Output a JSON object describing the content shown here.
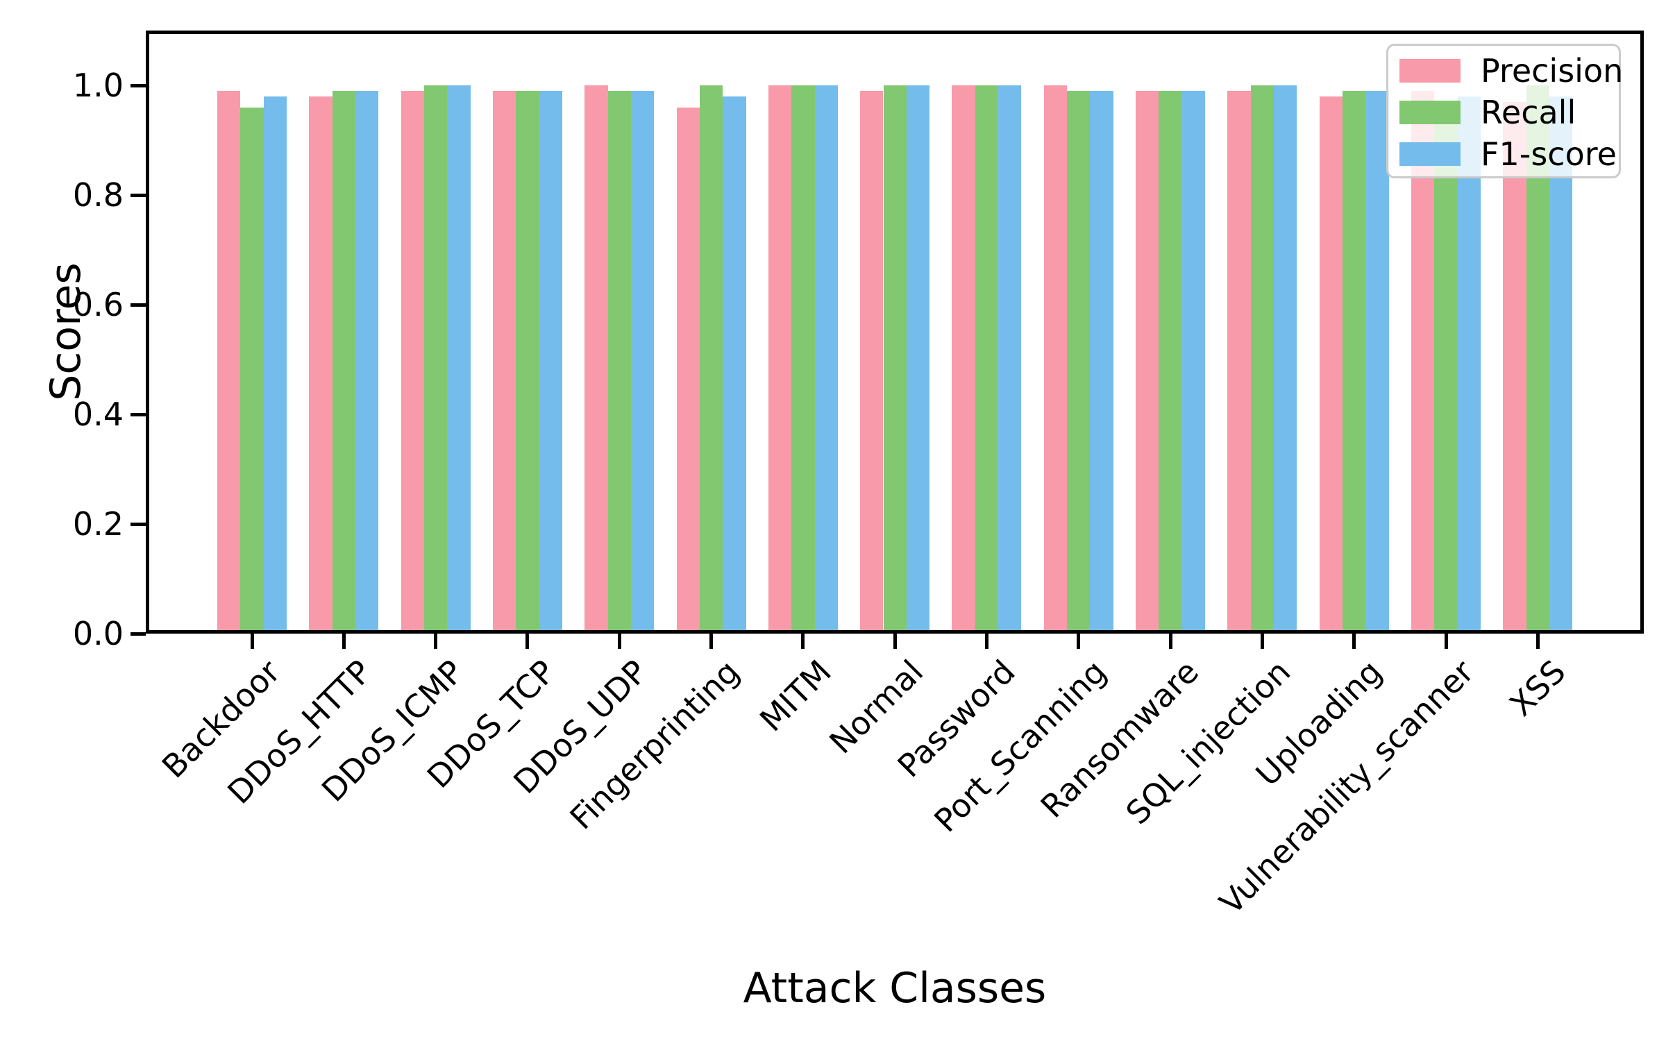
{
  "figure": {
    "background": "#ffffff",
    "axis_color": "#000000"
  },
  "chart_data": {
    "type": "bar",
    "title": "",
    "xlabel": "Attack Classes",
    "ylabel": "Scores",
    "categories": [
      "Backdoor",
      "DDoS_HTTP",
      "DDoS_ICMP",
      "DDoS_TCP",
      "DDoS_UDP",
      "Fingerprinting",
      "MITM",
      "Normal",
      "Password",
      "Port_Scanning",
      "Ransomware",
      "SQL_injection",
      "Uploading",
      "Vulnerability_scanner",
      "XSS"
    ],
    "series": [
      {
        "name": "Precision",
        "color": "#f89aaa",
        "values": [
          0.99,
          0.98,
          0.99,
          0.99,
          1.0,
          0.96,
          1.0,
          0.99,
          1.0,
          1.0,
          0.99,
          0.99,
          0.98,
          0.99,
          0.97
        ]
      },
      {
        "name": "Recall",
        "color": "#82c870",
        "values": [
          0.96,
          0.99,
          1.0,
          0.99,
          0.99,
          1.0,
          1.0,
          1.0,
          1.0,
          0.99,
          0.99,
          1.0,
          0.99,
          0.97,
          1.0
        ]
      },
      {
        "name": "F1-score",
        "color": "#74bcec",
        "values": [
          0.98,
          0.99,
          1.0,
          0.99,
          0.99,
          0.98,
          1.0,
          1.0,
          1.0,
          0.99,
          0.99,
          1.0,
          0.99,
          0.98,
          0.98
        ]
      }
    ],
    "ylim": [
      0.0,
      1.1
    ],
    "yticks": [
      "0.0",
      "0.2",
      "0.4",
      "0.6",
      "0.8",
      "1.0"
    ],
    "ytick_values": [
      0.0,
      0.2,
      0.4,
      0.6,
      0.8,
      1.0
    ],
    "xtick_rotation_deg": 45,
    "grid": false,
    "legend_position": "upper right",
    "legend_background_opacity": 0.8
  }
}
